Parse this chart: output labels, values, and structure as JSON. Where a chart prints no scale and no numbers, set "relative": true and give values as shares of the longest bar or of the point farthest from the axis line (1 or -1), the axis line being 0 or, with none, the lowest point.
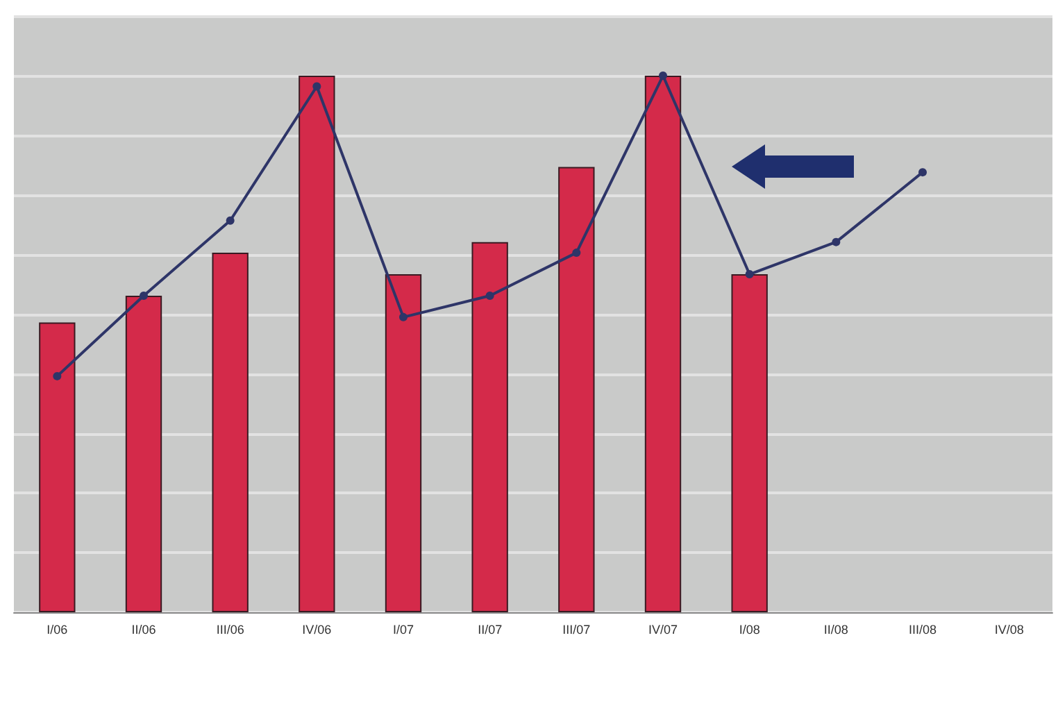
{
  "chart_data": {
    "type": "bar",
    "relative": true,
    "grid": "y",
    "categories": [
      "I/06",
      "II/06",
      "III/06",
      "IV/06",
      "I/07",
      "II/07",
      "III/07",
      "IV/07",
      "I/08",
      "II/08",
      "III/08",
      "IV/08"
    ],
    "series": [
      {
        "color": "#d42a4a",
        "values": [
          0.54,
          0.59,
          0.67,
          1.0,
          0.63,
          0.69,
          0.83,
          1.0,
          0.63,
          null,
          null,
          null
        ]
      },
      {
        "type": "line",
        "color": "#2e3568",
        "marker": "circle",
        "values": [
          0.44,
          0.59,
          0.73,
          0.98,
          0.55,
          0.59,
          0.67,
          1.0,
          0.63,
          0.69,
          0.82,
          null
        ]
      }
    ]
  }
}
